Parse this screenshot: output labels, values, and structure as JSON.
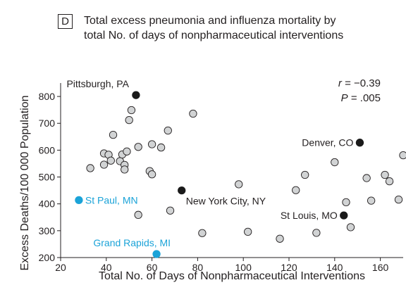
{
  "figure": {
    "panel_letter": "D",
    "title_line1": "Total excess pneumonia and influenza mortality by",
    "title_line2": "total No. of days of nonpharmaceutical interventions"
  },
  "colors": {
    "text": "#231f20",
    "gray_marker_fill": "#d1d3d4",
    "black_marker_fill": "#1a1a1a",
    "highlight_blue": "#1ba3d8"
  },
  "chart_data": {
    "type": "scatter",
    "title": "Total excess pneumonia and influenza mortality by total No. of days of nonpharmaceutical interventions",
    "xlabel": "Total No. of Days of Nonpharmaceutical Interventions",
    "ylabel": "Excess Deaths/100 000 Population",
    "xlim": [
      20,
      170
    ],
    "ylim": [
      200,
      850
    ],
    "x_ticks": [
      20,
      40,
      60,
      80,
      100,
      120,
      140,
      160
    ],
    "y_ticks": [
      200,
      300,
      400,
      500,
      600,
      700,
      800
    ],
    "grid": false,
    "stats": {
      "r_symbol": "r",
      "r_value": "−0.39",
      "p_symbol": "P",
      "p_value": ".005"
    },
    "series": [
      {
        "name": "",
        "style": "gray",
        "points": [
          {
            "x": 33,
            "y": 533
          },
          {
            "x": 39,
            "y": 546
          },
          {
            "x": 39,
            "y": 588
          },
          {
            "x": 41,
            "y": 583
          },
          {
            "x": 42,
            "y": 561
          },
          {
            "x": 43,
            "y": 657
          },
          {
            "x": 46,
            "y": 559
          },
          {
            "x": 47,
            "y": 584
          },
          {
            "x": 48,
            "y": 545
          },
          {
            "x": 48,
            "y": 528
          },
          {
            "x": 49,
            "y": 595
          },
          {
            "x": 50,
            "y": 712
          },
          {
            "x": 51,
            "y": 749
          },
          {
            "x": 54,
            "y": 612
          },
          {
            "x": 54,
            "y": 359
          },
          {
            "x": 59,
            "y": 522
          },
          {
            "x": 60,
            "y": 622
          },
          {
            "x": 60,
            "y": 510
          },
          {
            "x": 64,
            "y": 610
          },
          {
            "x": 67,
            "y": 673
          },
          {
            "x": 68,
            "y": 375
          },
          {
            "x": 78,
            "y": 736
          },
          {
            "x": 82,
            "y": 291
          },
          {
            "x": 98,
            "y": 473
          },
          {
            "x": 102,
            "y": 296
          },
          {
            "x": 116,
            "y": 270
          },
          {
            "x": 123,
            "y": 451
          },
          {
            "x": 127,
            "y": 508
          },
          {
            "x": 132,
            "y": 292
          },
          {
            "x": 140,
            "y": 555
          },
          {
            "x": 145,
            "y": 406
          },
          {
            "x": 147,
            "y": 313
          },
          {
            "x": 154,
            "y": 496
          },
          {
            "x": 156,
            "y": 412
          },
          {
            "x": 162,
            "y": 508
          },
          {
            "x": 164,
            "y": 484
          },
          {
            "x": 168,
            "y": 416
          },
          {
            "x": 170,
            "y": 581
          }
        ]
      },
      {
        "name": "",
        "style": "black",
        "points": [
          {
            "x": 53,
            "y": 805,
            "label": "Pittsburgh, PA",
            "label_side": "left",
            "label_pos": "above"
          },
          {
            "x": 151,
            "y": 628,
            "label": "Denver, CO",
            "label_side": "left",
            "label_pos": "mid"
          },
          {
            "x": 73,
            "y": 450,
            "label": "New York City, NY",
            "label_side": "right",
            "label_pos": "below"
          },
          {
            "x": 144,
            "y": 357,
            "label": "St Louis, MO",
            "label_side": "left",
            "label_pos": "mid"
          }
        ]
      },
      {
        "name": "",
        "style": "blue",
        "points": [
          {
            "x": 28,
            "y": 414,
            "label": "St Paul, MN",
            "label_side": "right",
            "label_pos": "mid"
          },
          {
            "x": 62,
            "y": 213,
            "label": "Grand Rapids, MI",
            "label_side": "left",
            "label_pos": "above"
          }
        ]
      }
    ]
  }
}
